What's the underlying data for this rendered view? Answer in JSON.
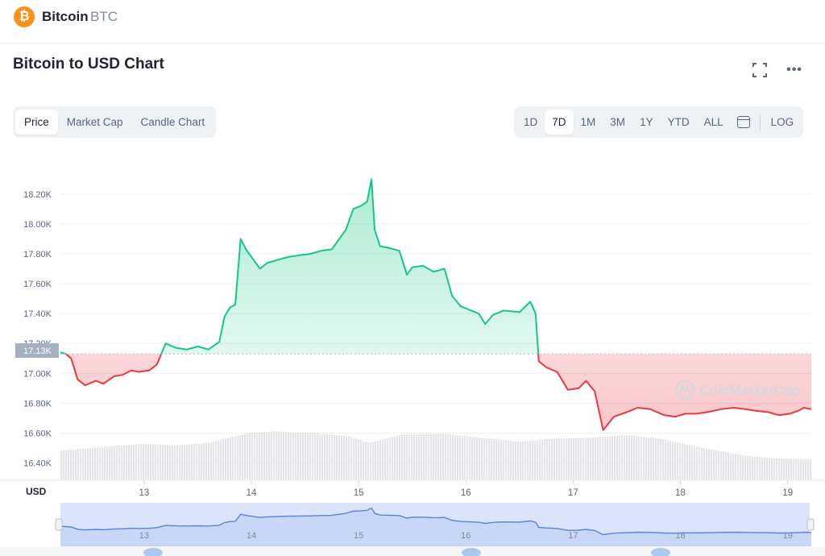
{
  "header": {
    "coin_name": "Bitcoin",
    "coin_symbol": "BTC",
    "coin_glyph": "₿",
    "brand_color": "#f7931a"
  },
  "chart_title": "Bitcoin to USD Chart",
  "toolbar": {
    "expand_icon": "expand-icon",
    "more_icon": "more-icon",
    "more_label": "•••",
    "chart_types": [
      "Price",
      "Market Cap",
      "Candle Chart"
    ],
    "active_chart_type": "Price",
    "ranges": [
      "1D",
      "7D",
      "1M",
      "3M",
      "1Y",
      "YTD",
      "ALL"
    ],
    "active_range": "7D",
    "calendar_icon": "calendar-icon",
    "log_label": "LOG"
  },
  "chart_data": {
    "type": "area",
    "currency_label": "USD",
    "x_ticks": [
      13,
      14,
      15,
      16,
      17,
      18,
      19
    ],
    "y_ticks": [
      "16.40K",
      "16.60K",
      "16.80K",
      "17.00K",
      "17.20K",
      "17.40K",
      "17.60K",
      "17.80K",
      "18.00K",
      "18.20K"
    ],
    "y_tick_values": [
      16400,
      16600,
      16800,
      17000,
      17200,
      17400,
      17600,
      17800,
      18000,
      18200
    ],
    "ylim": [
      16290,
      18420
    ],
    "xlim": [
      12.22,
      19.22
    ],
    "baseline_value": 17130,
    "baseline_label": "17.13K",
    "up_color": "#16c784",
    "down_color": "#ea3943",
    "watermark": "CoinMarketCap",
    "price_series": [
      [
        12.22,
        17140
      ],
      [
        12.27,
        17130
      ],
      [
        12.32,
        17100
      ],
      [
        12.38,
        16960
      ],
      [
        12.45,
        16920
      ],
      [
        12.55,
        16950
      ],
      [
        12.62,
        16930
      ],
      [
        12.72,
        16980
      ],
      [
        12.8,
        16990
      ],
      [
        12.88,
        17020
      ],
      [
        12.95,
        17010
      ],
      [
        13.05,
        17020
      ],
      [
        13.12,
        17060
      ],
      [
        13.2,
        17200
      ],
      [
        13.3,
        17170
      ],
      [
        13.4,
        17160
      ],
      [
        13.5,
        17180
      ],
      [
        13.6,
        17160
      ],
      [
        13.7,
        17210
      ],
      [
        13.75,
        17380
      ],
      [
        13.8,
        17440
      ],
      [
        13.85,
        17460
      ],
      [
        13.9,
        17900
      ],
      [
        13.95,
        17830
      ],
      [
        14.0,
        17780
      ],
      [
        14.08,
        17700
      ],
      [
        14.15,
        17740
      ],
      [
        14.25,
        17760
      ],
      [
        14.35,
        17780
      ],
      [
        14.45,
        17790
      ],
      [
        14.55,
        17800
      ],
      [
        14.65,
        17820
      ],
      [
        14.75,
        17830
      ],
      [
        14.8,
        17880
      ],
      [
        14.88,
        17960
      ],
      [
        14.95,
        18100
      ],
      [
        15.02,
        18120
      ],
      [
        15.08,
        18150
      ],
      [
        15.12,
        18300
      ],
      [
        15.15,
        17960
      ],
      [
        15.2,
        17850
      ],
      [
        15.28,
        17840
      ],
      [
        15.38,
        17820
      ],
      [
        15.45,
        17660
      ],
      [
        15.5,
        17710
      ],
      [
        15.6,
        17720
      ],
      [
        15.7,
        17680
      ],
      [
        15.8,
        17700
      ],
      [
        15.87,
        17520
      ],
      [
        15.95,
        17450
      ],
      [
        16.05,
        17420
      ],
      [
        16.12,
        17400
      ],
      [
        16.18,
        17330
      ],
      [
        16.25,
        17390
      ],
      [
        16.35,
        17420
      ],
      [
        16.5,
        17410
      ],
      [
        16.6,
        17480
      ],
      [
        16.65,
        17400
      ],
      [
        16.68,
        17080
      ],
      [
        16.75,
        17040
      ],
      [
        16.85,
        17010
      ],
      [
        16.95,
        16890
      ],
      [
        17.05,
        16900
      ],
      [
        17.12,
        16950
      ],
      [
        17.2,
        16880
      ],
      [
        17.28,
        16620
      ],
      [
        17.38,
        16710
      ],
      [
        17.5,
        16740
      ],
      [
        17.6,
        16770
      ],
      [
        17.72,
        16760
      ],
      [
        17.85,
        16720
      ],
      [
        17.95,
        16710
      ],
      [
        18.05,
        16730
      ],
      [
        18.15,
        16730
      ],
      [
        18.25,
        16740
      ],
      [
        18.38,
        16760
      ],
      [
        18.5,
        16770
      ],
      [
        18.6,
        16760
      ],
      [
        18.7,
        16750
      ],
      [
        18.82,
        16740
      ],
      [
        18.92,
        16720
      ],
      [
        19.02,
        16730
      ],
      [
        19.1,
        16750
      ],
      [
        19.15,
        16770
      ],
      [
        19.22,
        16760
      ]
    ],
    "volume_series": [
      [
        12.22,
        0.55
      ],
      [
        12.6,
        0.62
      ],
      [
        13.0,
        0.68
      ],
      [
        13.3,
        0.65
      ],
      [
        13.6,
        0.7
      ],
      [
        13.95,
        0.88
      ],
      [
        14.2,
        0.92
      ],
      [
        14.6,
        0.88
      ],
      [
        14.9,
        0.82
      ],
      [
        15.1,
        0.7
      ],
      [
        15.4,
        0.86
      ],
      [
        15.8,
        0.87
      ],
      [
        16.2,
        0.78
      ],
      [
        16.5,
        0.72
      ],
      [
        16.8,
        0.78
      ],
      [
        17.2,
        0.8
      ],
      [
        17.5,
        0.85
      ],
      [
        17.8,
        0.78
      ],
      [
        18.2,
        0.6
      ],
      [
        18.6,
        0.45
      ],
      [
        18.9,
        0.4
      ],
      [
        19.22,
        0.38
      ]
    ]
  }
}
